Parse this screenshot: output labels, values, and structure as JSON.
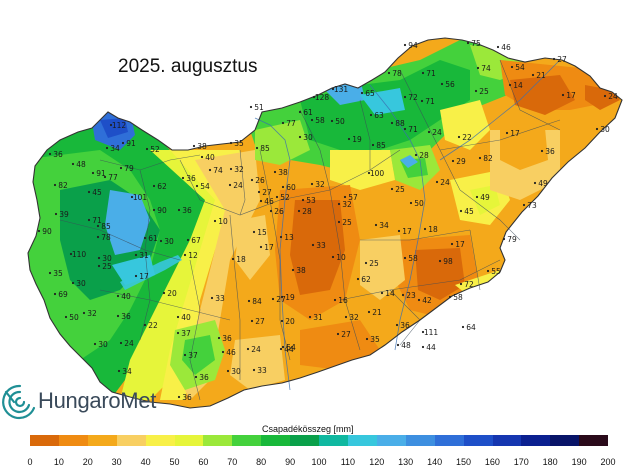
{
  "map": {
    "title": "2025. augusztus",
    "brand": "HungaroMet",
    "legend": {
      "title": "Csapadékösszeg [mm]",
      "ticks": [
        "0",
        "10",
        "20",
        "30",
        "40",
        "50",
        "60",
        "70",
        "80",
        "90",
        "100",
        "110",
        "120",
        "130",
        "140",
        "150",
        "160",
        "170",
        "180",
        "190",
        "200"
      ],
      "colors": [
        "#d9690a",
        "#ef8b12",
        "#f4a91b",
        "#f8cf62",
        "#f8f048",
        "#e6f53a",
        "#9be83a",
        "#44d13c",
        "#18b83a",
        "#0aa04a",
        "#0fb8a0",
        "#37c7dd",
        "#4aaee8",
        "#3d8fe0",
        "#2f6fd8",
        "#1e4fc8",
        "#1536b0",
        "#0b2090",
        "#081468",
        "#2a0a1a"
      ]
    },
    "stations": [
      {
        "v": "94"
      },
      {
        "v": "75"
      },
      {
        "v": "46"
      },
      {
        "v": "27"
      },
      {
        "v": "74"
      },
      {
        "v": "54"
      },
      {
        "v": "21"
      },
      {
        "v": "78"
      },
      {
        "v": "71"
      },
      {
        "v": "56"
      },
      {
        "v": "14"
      },
      {
        "v": "17"
      },
      {
        "v": "24"
      },
      {
        "v": "131"
      },
      {
        "v": "128"
      },
      {
        "v": "65"
      },
      {
        "v": "51"
      },
      {
        "v": "77"
      },
      {
        "v": "61"
      },
      {
        "v": "63"
      },
      {
        "v": "88"
      },
      {
        "v": "72"
      },
      {
        "v": "71"
      },
      {
        "v": "25"
      },
      {
        "v": "30"
      },
      {
        "v": "112"
      },
      {
        "v": "91"
      },
      {
        "v": "82"
      },
      {
        "v": "36"
      },
      {
        "v": "48"
      },
      {
        "v": "34"
      },
      {
        "v": "52"
      },
      {
        "v": "38"
      },
      {
        "v": "35"
      },
      {
        "v": "85"
      },
      {
        "v": "79"
      },
      {
        "v": "58"
      },
      {
        "v": "50"
      },
      {
        "v": "30"
      },
      {
        "v": "19"
      },
      {
        "v": "85"
      },
      {
        "v": "71"
      },
      {
        "v": "24"
      },
      {
        "v": "22"
      },
      {
        "v": "17"
      },
      {
        "v": "36"
      },
      {
        "v": "77"
      },
      {
        "v": "91"
      },
      {
        "v": "45"
      },
      {
        "v": "101"
      },
      {
        "v": "62"
      },
      {
        "v": "40"
      },
      {
        "v": "74"
      },
      {
        "v": "36"
      },
      {
        "v": "32"
      },
      {
        "v": "26"
      },
      {
        "v": "100"
      },
      {
        "v": "28"
      },
      {
        "v": "29"
      },
      {
        "v": "82"
      },
      {
        "v": "39"
      },
      {
        "v": "71"
      },
      {
        "v": "85"
      },
      {
        "v": "90"
      },
      {
        "v": "54"
      },
      {
        "v": "24"
      },
      {
        "v": "27"
      },
      {
        "v": "38"
      },
      {
        "v": "46"
      },
      {
        "v": "60"
      },
      {
        "v": "52"
      },
      {
        "v": "53"
      },
      {
        "v": "32"
      },
      {
        "v": "32"
      },
      {
        "v": "25"
      },
      {
        "v": "24"
      },
      {
        "v": "49"
      },
      {
        "v": "49"
      },
      {
        "v": "73"
      },
      {
        "v": "36"
      },
      {
        "v": "10"
      },
      {
        "v": "26"
      },
      {
        "v": "28"
      },
      {
        "v": "57"
      },
      {
        "v": "45"
      },
      {
        "v": "50"
      },
      {
        "v": "90"
      },
      {
        "v": "78"
      },
      {
        "v": "61"
      },
      {
        "v": "30"
      },
      {
        "v": "67"
      },
      {
        "v": "15"
      },
      {
        "v": "13"
      },
      {
        "v": "25"
      },
      {
        "v": "34"
      },
      {
        "v": "17"
      },
      {
        "v": "18"
      },
      {
        "v": "17"
      },
      {
        "v": "79"
      },
      {
        "v": "110"
      },
      {
        "v": "30"
      },
      {
        "v": "31"
      },
      {
        "v": "12"
      },
      {
        "v": "17"
      },
      {
        "v": "33"
      },
      {
        "v": "10"
      },
      {
        "v": "58"
      },
      {
        "v": "98"
      },
      {
        "v": "25"
      },
      {
        "v": "17"
      },
      {
        "v": "18"
      },
      {
        "v": "38"
      },
      {
        "v": "25"
      },
      {
        "v": "62"
      },
      {
        "v": "55"
      },
      {
        "v": "84"
      },
      {
        "v": "35"
      },
      {
        "v": "30"
      },
      {
        "v": "40"
      },
      {
        "v": "20"
      },
      {
        "v": "33"
      },
      {
        "v": "19"
      },
      {
        "v": "16"
      },
      {
        "v": "14"
      },
      {
        "v": "23"
      },
      {
        "v": "42"
      },
      {
        "v": "58"
      },
      {
        "v": "72"
      },
      {
        "v": "69"
      },
      {
        "v": "32"
      },
      {
        "v": "36"
      },
      {
        "v": "22"
      },
      {
        "v": "40"
      },
      {
        "v": "36"
      },
      {
        "v": "27"
      },
      {
        "v": "27"
      },
      {
        "v": "20"
      },
      {
        "v": "31"
      },
      {
        "v": "32"
      },
      {
        "v": "21"
      },
      {
        "v": "36"
      },
      {
        "v": "111"
      },
      {
        "v": "64"
      },
      {
        "v": "50"
      },
      {
        "v": "30"
      },
      {
        "v": "24"
      },
      {
        "v": "37"
      },
      {
        "v": "46"
      },
      {
        "v": "24"
      },
      {
        "v": "54"
      },
      {
        "v": "27"
      },
      {
        "v": "35"
      },
      {
        "v": "48"
      },
      {
        "v": "44"
      },
      {
        "v": "37"
      },
      {
        "v": "30"
      },
      {
        "v": "33"
      },
      {
        "v": "44"
      },
      {
        "v": "36"
      },
      {
        "v": "34"
      },
      {
        "v": "36"
      }
    ]
  }
}
